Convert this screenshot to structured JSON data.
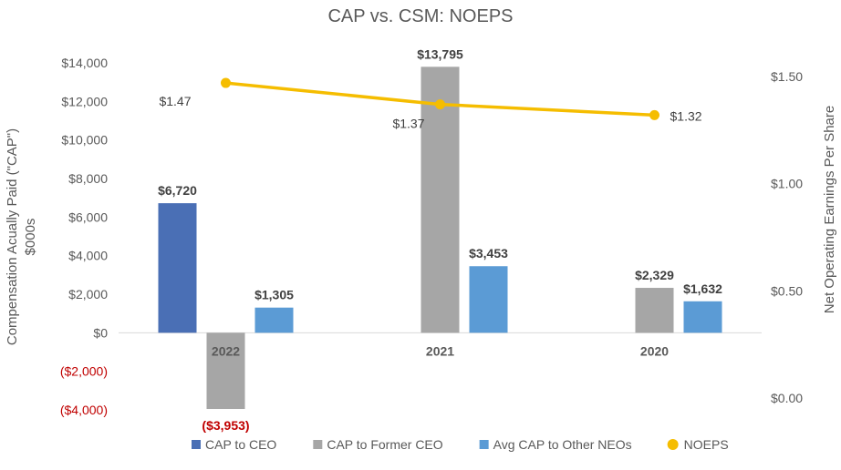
{
  "chart_data": {
    "type": "bar",
    "title": "CAP vs. CSM: NOEPS",
    "categories": [
      "2022",
      "2021",
      "2020"
    ],
    "ylabel_line1": "Compensation Acually Paid (\"CAP\")",
    "ylabel_line2": "$000s",
    "y2label": "Net  Operating Earnings  Per Share",
    "ylim": [
      -4000,
      14000
    ],
    "y_ticks": [
      -4000,
      -2000,
      0,
      2000,
      4000,
      6000,
      8000,
      10000,
      12000,
      14000
    ],
    "y_tick_labels": [
      "($4,000)",
      "($2,000)",
      "$0",
      "$2,000",
      "$4,000",
      "$6,000",
      "$8,000",
      "$10,000",
      "$12,000",
      "$14,000"
    ],
    "y2lim": [
      0,
      1.6
    ],
    "y2_ticks": [
      0,
      0.5,
      1.0,
      1.5
    ],
    "y2_tick_labels": [
      "$0.00",
      "$0.50",
      "$1.00",
      "$1.50"
    ],
    "series": [
      {
        "name": "CAP to CEO",
        "color": "#4a6fb5",
        "values": [
          6720,
          null,
          null
        ],
        "labels": [
          "$6,720",
          "",
          ""
        ]
      },
      {
        "name": "CAP to Former CEO",
        "color": "#a6a6a6",
        "values": [
          -3953,
          13795,
          2329
        ],
        "labels": [
          "($3,953)",
          "$13,795",
          "$2,329"
        ]
      },
      {
        "name": "Avg CAP to Other NEOs",
        "color": "#5b9bd5",
        "values": [
          1305,
          3453,
          1632
        ],
        "labels": [
          "$1,305",
          "$3,453",
          "$1,632"
        ]
      }
    ],
    "line_series": {
      "name": "NOEPS",
      "color": "#f5bd00",
      "values": [
        1.47,
        1.37,
        1.32
      ],
      "labels": [
        "$1.47",
        "$1.37",
        "$1.32"
      ],
      "axis": "right"
    },
    "legend": "bottom"
  }
}
